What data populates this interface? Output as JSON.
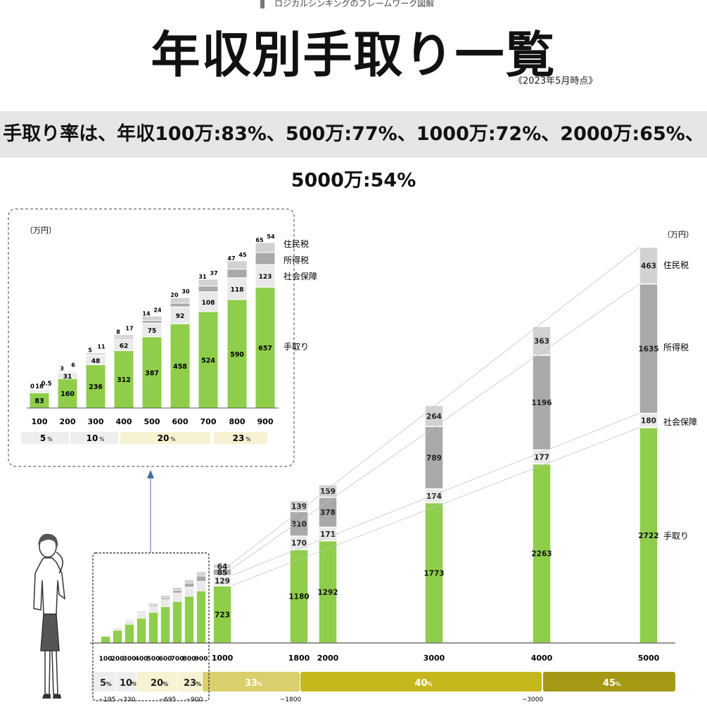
{
  "header": {
    "subtitle": "ロジカルシンキングのフレームワーク図解",
    "title": "年収別手取り一覧",
    "date_note": "《2023年5月時点》",
    "summary": "手取り率は、年収100万:83%、500万:77%、1000万:72%、2000万:65%、5000万:54%"
  },
  "colors": {
    "takehome": "#8fce4b",
    "social": "#e9e9e9",
    "income_tax": "#a9a9a9",
    "resident_tax": "#d2d2d2",
    "band_light": "#eeeeee",
    "band_beige": "#f6f2d2",
    "band_khaki": "#d9cf6c",
    "band_olive": "#c6b81c",
    "band_dark": "#a59914"
  },
  "chart_data": [
    {
      "type": "bar",
      "stacked": true,
      "unit": "（万円）",
      "categories": [
        "100",
        "200",
        "300",
        "400",
        "500",
        "600",
        "700",
        "800",
        "900"
      ],
      "series": [
        {
          "name": "手取り",
          "values": [
            83,
            160,
            236,
            312,
            387,
            458,
            524,
            590,
            657
          ]
        },
        {
          "name": "社会保障",
          "values": [
            16,
            31,
            48,
            62,
            75,
            92,
            108,
            118,
            123
          ]
        },
        {
          "name": "所得税",
          "values": [
            "0",
            "3",
            "5",
            "8",
            "14",
            "20",
            "31",
            "47",
            "65"
          ]
        },
        {
          "name": "住民税",
          "values": [
            "0.5",
            "6",
            "11",
            "17",
            "24",
            "30",
            "37",
            "45",
            "54"
          ]
        }
      ],
      "tax_bands": [
        {
          "rate": "5",
          "unit": "%"
        },
        {
          "rate": "10",
          "unit": "%"
        },
        {
          "rate": "20",
          "unit": "%"
        },
        {
          "rate": "23",
          "unit": "%"
        }
      ]
    },
    {
      "type": "bar",
      "stacked": true,
      "unit": "（万円）",
      "categories": [
        "100",
        "200",
        "300",
        "400",
        "500",
        "600",
        "700",
        "800",
        "900",
        "1000",
        "1800",
        "2000",
        "3000",
        "4000",
        "5000"
      ],
      "series": [
        {
          "name": "手取り",
          "values": [
            83,
            160,
            236,
            312,
            387,
            458,
            524,
            590,
            657,
            723,
            1180,
            1292,
            1773,
            2263,
            2722
          ]
        },
        {
          "name": "社会保障",
          "values": [
            16,
            31,
            48,
            62,
            75,
            92,
            108,
            118,
            123,
            129,
            170,
            171,
            174,
            177,
            180
          ]
        },
        {
          "name": "所得税",
          "values": [
            0,
            3,
            5,
            8,
            14,
            20,
            31,
            47,
            65,
            85,
            310,
            378,
            789,
            1196,
            1635
          ]
        },
        {
          "name": "住民税",
          "values": [
            0.5,
            6,
            11,
            17,
            24,
            30,
            37,
            45,
            54,
            64,
            139,
            159,
            264,
            363,
            463
          ]
        }
      ],
      "tax_bands": [
        {
          "rate": "5",
          "unit": "%",
          "limit": "~195"
        },
        {
          "rate": "10",
          "unit": "%",
          "limit": "~330"
        },
        {
          "rate": "20",
          "unit": "%",
          "limit": "~695"
        },
        {
          "rate": "23",
          "unit": "%",
          "limit": "~900"
        },
        {
          "rate": "33",
          "unit": "%",
          "limit": "~1800"
        },
        {
          "rate": "40",
          "unit": "%",
          "limit": "~3000"
        },
        {
          "rate": "45",
          "unit": "%",
          "limit": ""
        }
      ]
    }
  ]
}
